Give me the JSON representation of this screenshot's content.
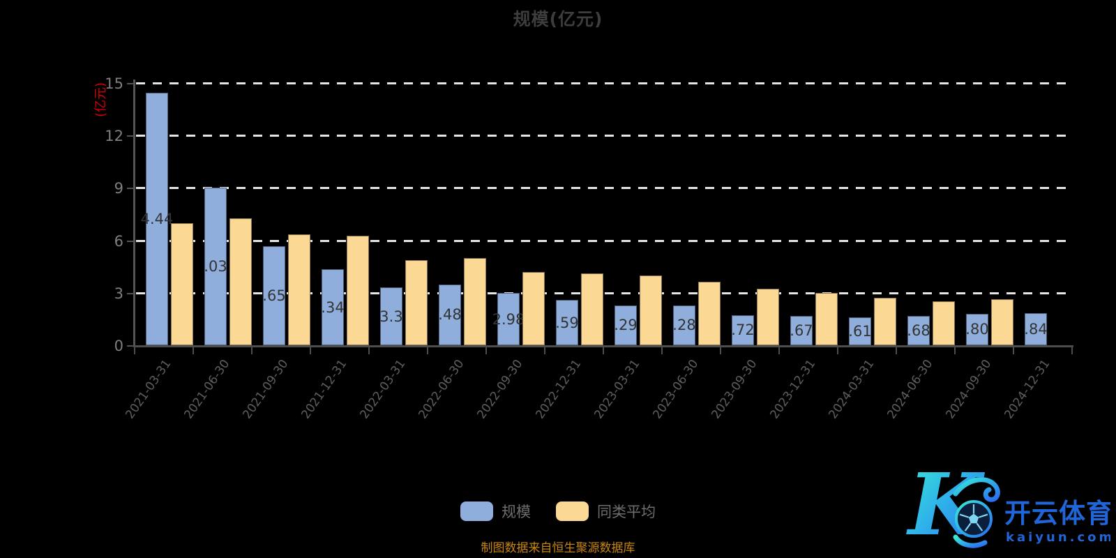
{
  "title": "规模(亿元)",
  "y_axis": {
    "name": "(亿元)",
    "tick_values": [
      15,
      12,
      9,
      6,
      3,
      0
    ],
    "gridline_values": [
      15,
      12,
      9,
      6,
      3
    ],
    "max": 15,
    "min": 0
  },
  "bars": [
    {
      "date": "2021-03-31",
      "label": "4.44",
      "scale": 14.44,
      "avg": 7.0
    },
    {
      "date": "2021-06-30",
      "label": ".03",
      "scale": 9.03,
      "avg": 7.25
    },
    {
      "date": "2021-09-30",
      "label": ".65",
      "scale": 5.65,
      "avg": 6.35
    },
    {
      "date": "2021-12-31",
      "label": ".34",
      "scale": 4.34,
      "avg": 6.25
    },
    {
      "date": "2022-03-31",
      "label": "3.3",
      "scale": 3.3,
      "avg": 4.85
    },
    {
      "date": "2022-06-30",
      "label": ".48",
      "scale": 3.48,
      "avg": 5.0
    },
    {
      "date": "2022-09-30",
      "label": "2.98",
      "scale": 2.98,
      "avg": 4.2
    },
    {
      "date": "2022-12-31",
      "label": ".59",
      "scale": 2.59,
      "avg": 4.1
    },
    {
      "date": "2023-03-31",
      "label": ".29",
      "scale": 2.29,
      "avg": 4.0
    },
    {
      "date": "2023-06-30",
      "label": ".28",
      "scale": 2.28,
      "avg": 3.65
    },
    {
      "date": "2023-09-30",
      "label": ".72",
      "scale": 1.72,
      "avg": 3.25
    },
    {
      "date": "2023-12-31",
      "label": ".67",
      "scale": 1.67,
      "avg": 3.0
    },
    {
      "date": "2024-03-31",
      "label": ".61",
      "scale": 1.61,
      "avg": 2.7
    },
    {
      "date": "2024-06-30",
      "label": ".68",
      "scale": 1.68,
      "avg": 2.5
    },
    {
      "date": "2024-09-30",
      "label": ".80",
      "scale": 1.8,
      "avg": 2.65
    },
    {
      "date": "2024-12-31",
      "label": ".84",
      "scale": 1.84,
      "avg": null
    }
  ],
  "legend": {
    "scale_label": "规模",
    "avg_label": "同类平均"
  },
  "footer": "制图数据来自恒生聚源数据库",
  "logo": {
    "title": "开云体育",
    "domain": "kaiyun.com"
  },
  "colors": {
    "scale_bar": "#8FAEDC",
    "avg_bar": "#FBD893",
    "grid": "#e6e6e6",
    "axis": "#555555",
    "bar_label": "#333333",
    "date_label": "#5e5e5e",
    "y_label": "#7f7f7f",
    "title": "#3d3d3d",
    "legend_text": "#6e6e6e",
    "footer": "#c8860b",
    "y_name": "#d60000",
    "logo_blue": "#2066d8",
    "logo_teal": "#35e0cd"
  },
  "chart_data": {
    "type": "bar",
    "title": "规模(亿元)",
    "ylabel": "(亿元)",
    "xlabel": "",
    "ylim": [
      0,
      15
    ],
    "yticks": [
      0,
      3,
      6,
      9,
      12,
      15
    ],
    "grid": "dashed horizontal",
    "legend_position": "bottom",
    "categories": [
      "2021-03-31",
      "2021-06-30",
      "2021-09-30",
      "2021-12-31",
      "2022-03-31",
      "2022-06-30",
      "2022-09-30",
      "2022-12-31",
      "2023-03-31",
      "2023-06-30",
      "2023-09-30",
      "2023-12-31",
      "2024-03-31",
      "2024-06-30",
      "2024-09-30",
      "2024-12-31"
    ],
    "series": [
      {
        "name": "规模",
        "color": "#8FAEDC",
        "values": [
          14.44,
          9.03,
          5.65,
          4.34,
          3.3,
          3.48,
          2.98,
          2.59,
          2.29,
          2.28,
          1.72,
          1.67,
          1.61,
          1.68,
          1.8,
          1.84
        ]
      },
      {
        "name": "同类平均",
        "color": "#FBD893",
        "values": [
          7.0,
          7.25,
          6.35,
          6.25,
          4.85,
          5.0,
          4.2,
          4.1,
          4.0,
          3.65,
          3.25,
          3.0,
          2.7,
          2.5,
          2.65,
          null
        ]
      }
    ],
    "bar_value_labels_visible": [
      "4.44",
      ".03",
      ".65",
      ".34",
      "3.3",
      ".48",
      "2.98",
      ".59",
      ".29",
      ".28",
      ".72",
      ".67",
      ".61",
      ".68",
      ".80",
      ".84"
    ]
  }
}
